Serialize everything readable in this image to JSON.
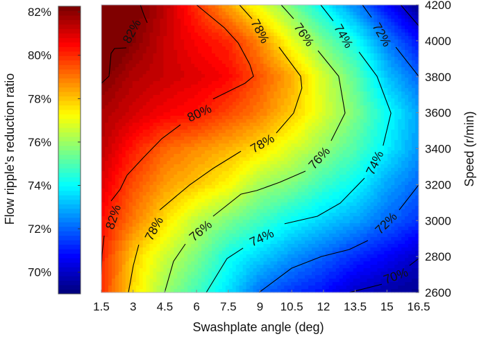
{
  "chart_data": {
    "type": "heatmap",
    "subtype": "filled-contour",
    "xlabel": "Swashplate angle (deg)",
    "ylabel_left": "Flow ripple's reduction ratio",
    "ylabel_right": "Speed (r/min)",
    "xlim": [
      1.5,
      16.5
    ],
    "ylim": [
      2600,
      4200
    ],
    "colormap": "jet",
    "clim": [
      69.0,
      82.26
    ],
    "xticks": [
      "1.5",
      "3",
      "4.5",
      "6",
      "7.5",
      "9",
      "10.5",
      "12",
      "13.5",
      "15",
      "16.5"
    ],
    "xtick_values": [
      1.5,
      3,
      4.5,
      6,
      7.5,
      9,
      10.5,
      12,
      13.5,
      15,
      16.5
    ],
    "yticks": [
      "2600",
      "2800",
      "3000",
      "3200",
      "3400",
      "3600",
      "3800",
      "4000",
      "4200"
    ],
    "ytick_values": [
      2600,
      2800,
      3000,
      3200,
      3400,
      3600,
      3800,
      4000,
      4200
    ],
    "colorbar_ticks": [
      "70%",
      "72%",
      "74%",
      "76%",
      "78%",
      "80%",
      "82%"
    ],
    "colorbar_tick_values": [
      70,
      72,
      74,
      76,
      78,
      80,
      82
    ],
    "grid_x": [
      1.5,
      3,
      4.5,
      6,
      7.5,
      9,
      10.5,
      12,
      13.5,
      15,
      16.5
    ],
    "grid_y": [
      4200,
      4000,
      3800,
      3600,
      3400,
      3200,
      3000,
      2800,
      2600
    ],
    "z": [
      [
        83.5,
        82.5,
        81.5,
        80.0,
        78.5,
        77.0,
        75.5,
        73.9,
        72.4,
        70.7,
        69.2
      ],
      [
        83.2,
        82.2,
        81.3,
        80.6,
        80.1,
        78.8,
        77.0,
        75.5,
        74.2,
        72.3,
        70.8
      ],
      [
        82.3,
        81.6,
        81.3,
        81.0,
        80.6,
        79.5,
        78.4,
        76.7,
        75.2,
        73.2,
        72.0
      ],
      [
        81.7,
        81.2,
        80.7,
        80.4,
        79.7,
        79.0,
        78.0,
        76.8,
        75.6,
        74.1,
        72.8
      ],
      [
        81.5,
        80.3,
        79.3,
        78.8,
        78.3,
        77.7,
        76.8,
        75.9,
        75.0,
        73.8,
        72.6
      ],
      [
        81.0,
        79.6,
        78.6,
        78.0,
        77.3,
        76.1,
        75.6,
        74.7,
        74.0,
        72.8,
        72.0
      ],
      [
        80.5,
        79.0,
        77.7,
        76.4,
        75.6,
        74.8,
        74.0,
        73.4,
        72.8,
        72.0,
        71.3
      ],
      [
        80.2,
        78.0,
        76.6,
        75.6,
        74.2,
        73.4,
        72.6,
        71.9,
        71.2,
        70.6,
        69.9
      ],
      [
        80.0,
        77.7,
        76.0,
        74.8,
        73.6,
        72.0,
        71.3,
        70.8,
        69.9,
        69.5,
        69.2
      ]
    ],
    "contours": [
      {
        "level": "82%",
        "segments": [
          [
            [
              1.5,
              3764
            ],
            [
              1.86,
              3803
            ],
            [
              1.96,
              3930
            ],
            [
              2.12,
              3957
            ],
            [
              2.68,
              3961
            ]
          ],
          [
            [
              3.67,
              4100
            ],
            [
              3.53,
              4138
            ],
            [
              3.34,
              4200
            ]
          ]
        ]
      },
      {
        "level": "80%",
        "segments": [
          [
            [
              6.0,
              4200
            ],
            [
              7.31,
              4073
            ],
            [
              7.97,
              3988
            ],
            [
              8.52,
              3868
            ],
            [
              8.69,
              3803
            ],
            [
              8.29,
              3764
            ],
            [
              6.78,
              3676
            ]
          ],
          [
            [
              5.24,
              3533
            ],
            [
              4.36,
              3456
            ],
            [
              3.5,
              3352
            ],
            [
              2.71,
              3252
            ],
            [
              2.39,
              3174
            ],
            [
              1.96,
              3109
            ]
          ],
          [
            [
              1.63,
              2916
            ],
            [
              1.53,
              2812
            ],
            [
              1.5,
              2700
            ]
          ]
        ]
      },
      {
        "level": "78%",
        "segments": [
          [
            [
              8.03,
              4200
            ],
            [
              8.62,
              4123
            ]
          ],
          [
            [
              9.9,
              3965
            ],
            [
              10.92,
              3803
            ],
            [
              10.98,
              3737
            ],
            [
              10.59,
              3598
            ],
            [
              9.77,
              3487
            ]
          ],
          [
            [
              8.1,
              3386
            ],
            [
              6.78,
              3290
            ],
            [
              5.67,
              3198
            ],
            [
              4.26,
              3059
            ]
          ],
          [
            [
              3.27,
              2866
            ],
            [
              3.01,
              2750
            ],
            [
              2.78,
              2600
            ]
          ]
        ]
      },
      {
        "level": "76%",
        "segments": [
          [
            [
              10.0,
              4200
            ],
            [
              10.59,
              4123
            ]
          ],
          [
            [
              11.74,
              3945
            ],
            [
              12.72,
              3803
            ],
            [
              13.02,
              3598
            ],
            [
              12.36,
              3444
            ]
          ],
          [
            [
              11.15,
              3275
            ],
            [
              9.93,
              3213
            ],
            [
              8.85,
              3167
            ],
            [
              8.1,
              3147
            ],
            [
              6.78,
              3024
            ]
          ],
          [
            [
              5.47,
              2870
            ],
            [
              4.91,
              2773
            ],
            [
              4.49,
              2600
            ]
          ]
        ]
      },
      {
        "level": "74%",
        "segments": [
          [
            [
              11.87,
              4200
            ],
            [
              12.46,
              4111
            ]
          ],
          [
            [
              13.68,
              3938
            ],
            [
              14.53,
              3803
            ],
            [
              15.19,
              3598
            ],
            [
              14.82,
              3417
            ]
          ],
          [
            [
              13.94,
              3236
            ],
            [
              12.79,
              3097
            ],
            [
              11.71,
              3024
            ],
            [
              10.16,
              2982
            ]
          ],
          [
            [
              8.2,
              2847
            ],
            [
              7.44,
              2789
            ],
            [
              6.46,
              2600
            ]
          ]
        ]
      },
      {
        "level": "72%",
        "segments": [
          [
            [
              13.84,
              4200
            ],
            [
              14.27,
              4130
            ]
          ],
          [
            [
              15.42,
              3965
            ],
            [
              16.5,
              3803
            ]
          ],
          [
            [
              16.5,
              3198
            ],
            [
              15.58,
              3059
            ]
          ],
          [
            [
              14.1,
              2889
            ],
            [
              13.22,
              2839
            ],
            [
              11.9,
              2800
            ],
            [
              10.49,
              2735
            ],
            [
              8.95,
              2600
            ]
          ]
        ]
      },
      {
        "level": "70%",
        "segments": [
          [
            [
              15.65,
              4200
            ],
            [
              16.5,
              4084
            ]
          ],
          [
            [
              16.5,
              2789
            ],
            [
              16.07,
              2750
            ]
          ],
          [
            [
              14.76,
              2646
            ],
            [
              13.22,
              2600
            ]
          ]
        ]
      }
    ],
    "contour_labels": [
      {
        "text": "82%",
        "x": 2.94,
        "y": 4053,
        "angle": -62
      },
      {
        "text": "80%",
        "x": 6.13,
        "y": 3598,
        "angle": -25
      },
      {
        "text": "82%",
        "x": 2.06,
        "y": 3020,
        "angle": -72
      },
      {
        "text": "78%",
        "x": 9.0,
        "y": 4053,
        "angle": 62
      },
      {
        "text": "78%",
        "x": 9.11,
        "y": 3429,
        "angle": -30
      },
      {
        "text": "78%",
        "x": 3.99,
        "y": 2955,
        "angle": -62
      },
      {
        "text": "76%",
        "x": 11.08,
        "y": 4034,
        "angle": 55
      },
      {
        "text": "76%",
        "x": 11.8,
        "y": 3348,
        "angle": -48
      },
      {
        "text": "76%",
        "x": 6.19,
        "y": 2943,
        "angle": -40
      },
      {
        "text": "74%",
        "x": 12.95,
        "y": 4026,
        "angle": 60
      },
      {
        "text": "74%",
        "x": 14.43,
        "y": 3321,
        "angle": -65
      },
      {
        "text": "74%",
        "x": 9.08,
        "y": 2905,
        "angle": -25
      },
      {
        "text": "72%",
        "x": 14.76,
        "y": 4034,
        "angle": 60
      },
      {
        "text": "72%",
        "x": 14.96,
        "y": 2985,
        "angle": -45
      },
      {
        "text": "70%",
        "x": 15.42,
        "y": 2692,
        "angle": -20
      }
    ]
  }
}
